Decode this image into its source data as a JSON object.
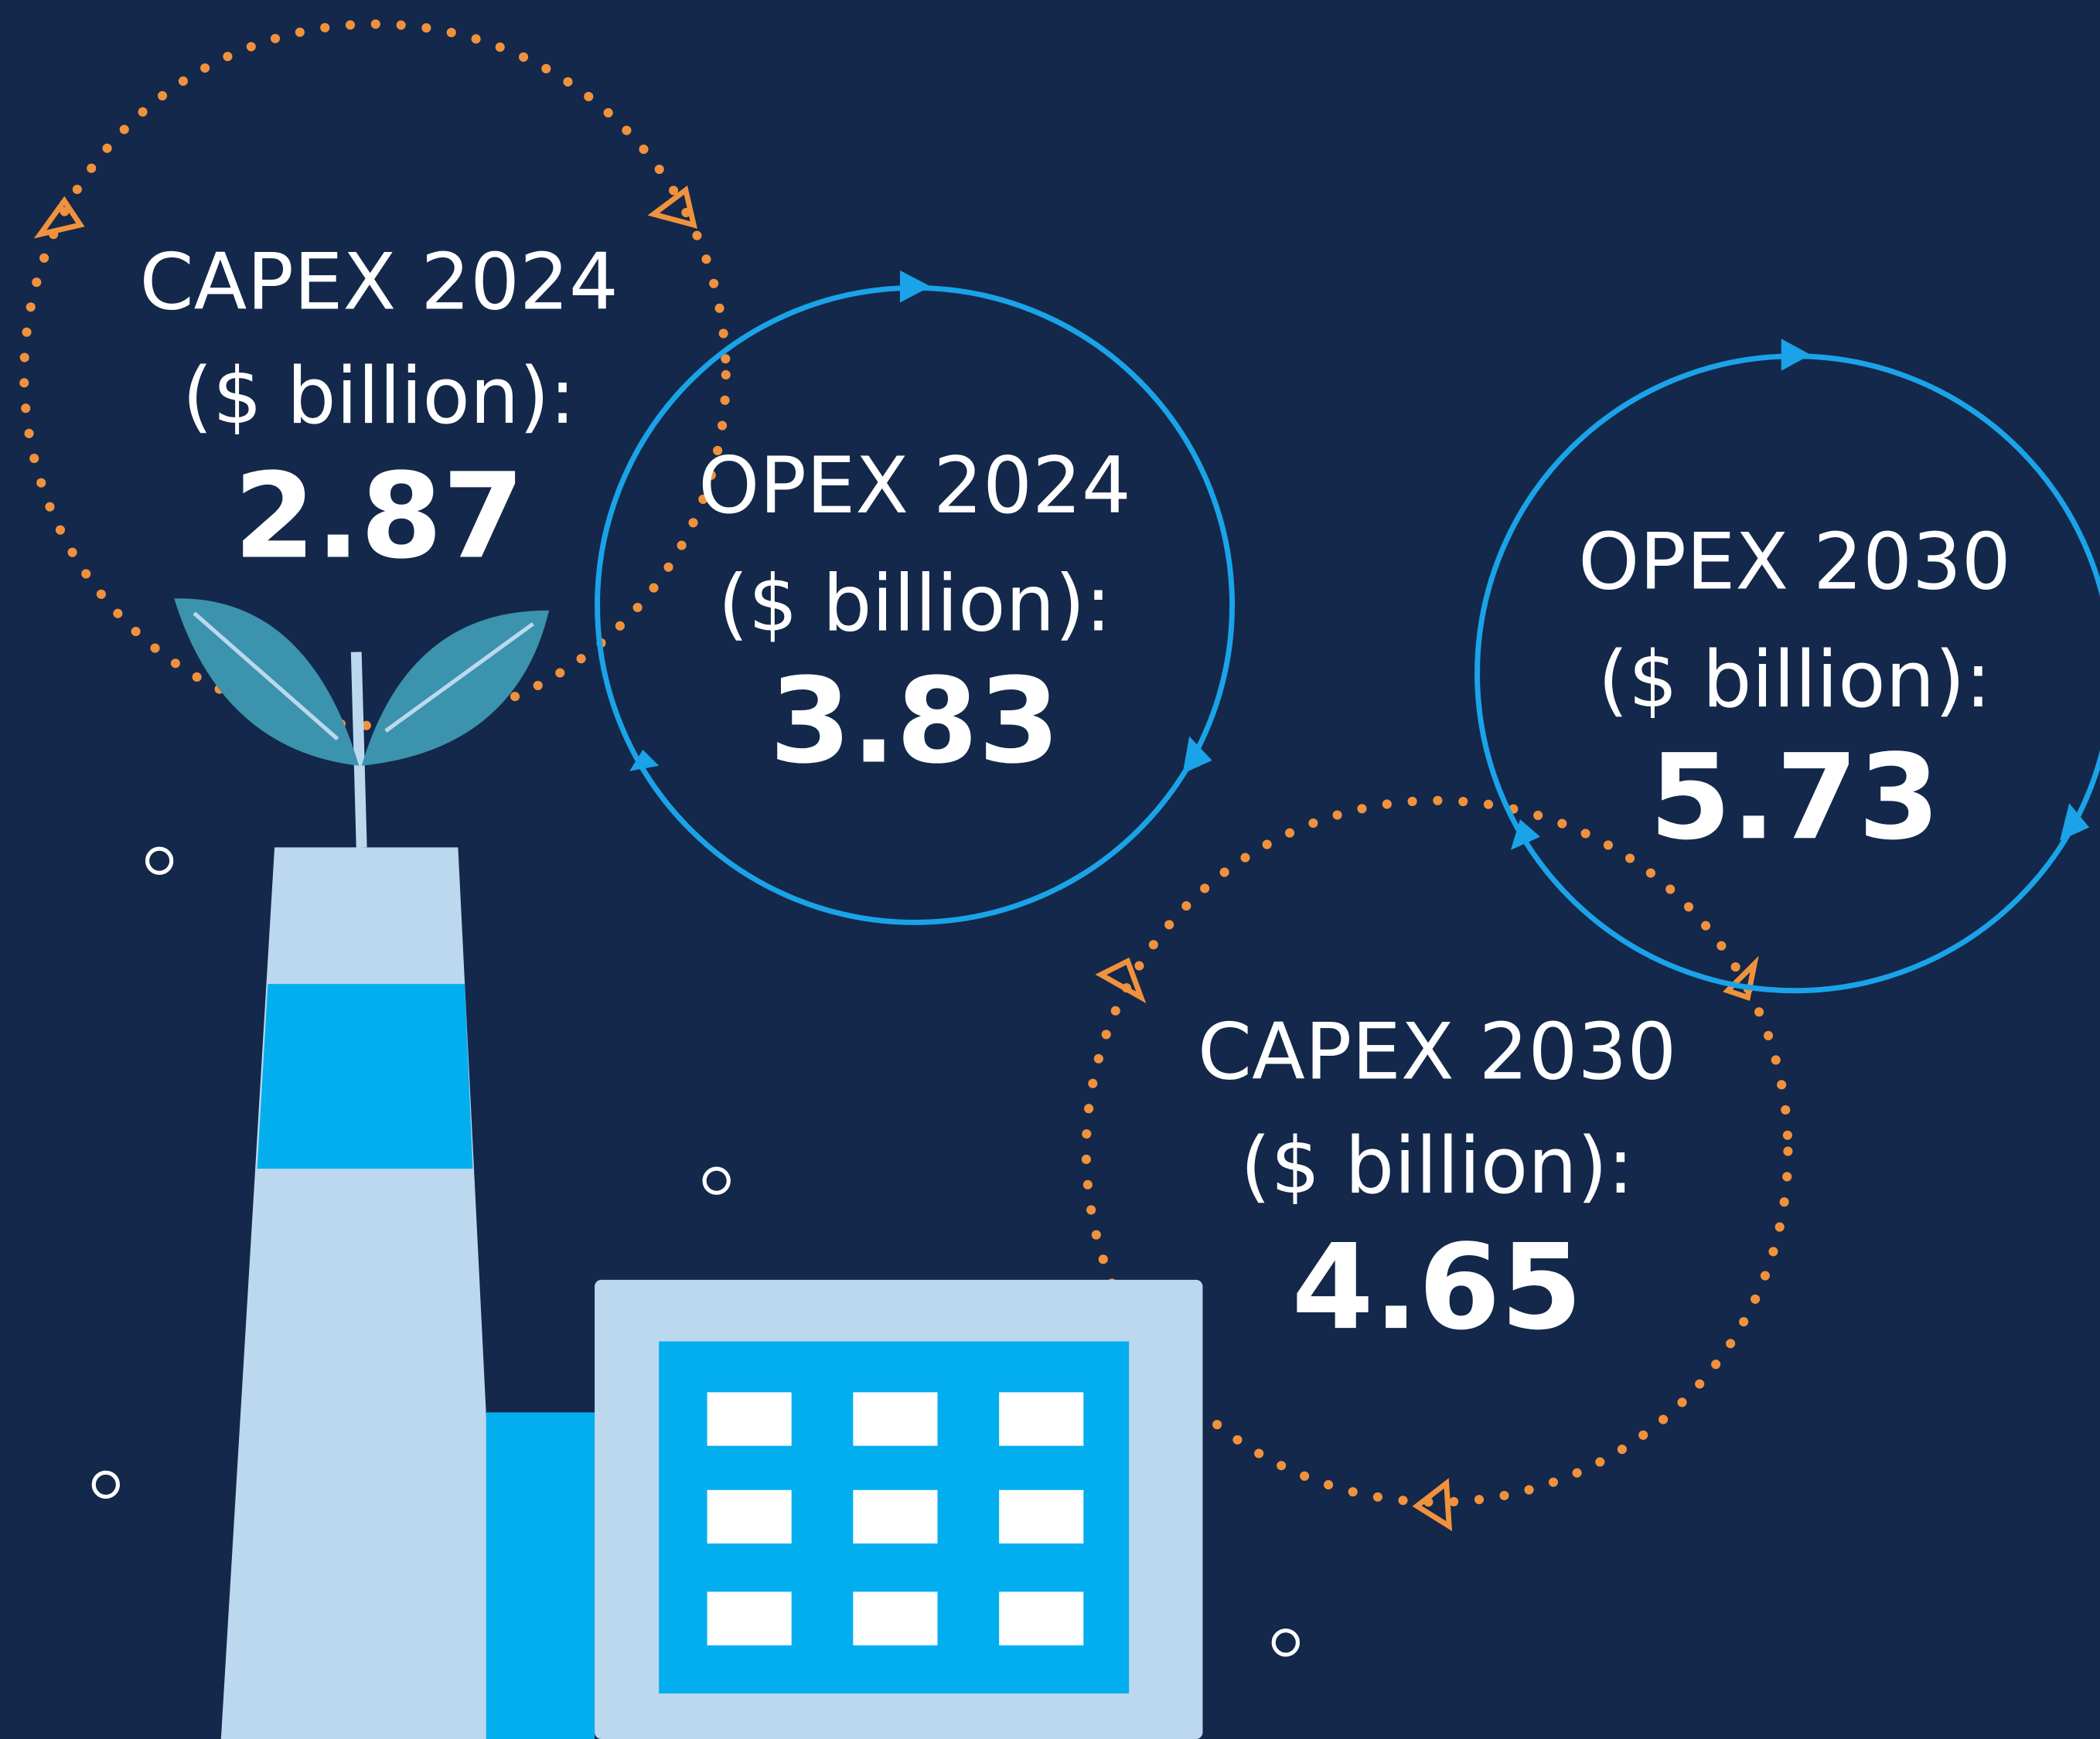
{
  "metrics": [
    {
      "label": "CAPEX 2024",
      "unit": "($ billion):",
      "value": "2.87"
    },
    {
      "label": "OPEX 2024",
      "unit": "($ billion):",
      "value": "3.83"
    },
    {
      "label": "OPEX 2030",
      "unit": "($ billion):",
      "value": "5.73"
    },
    {
      "label": "CAPEX 2030",
      "unit": "($ billion):",
      "value": "4.65"
    }
  ]
}
